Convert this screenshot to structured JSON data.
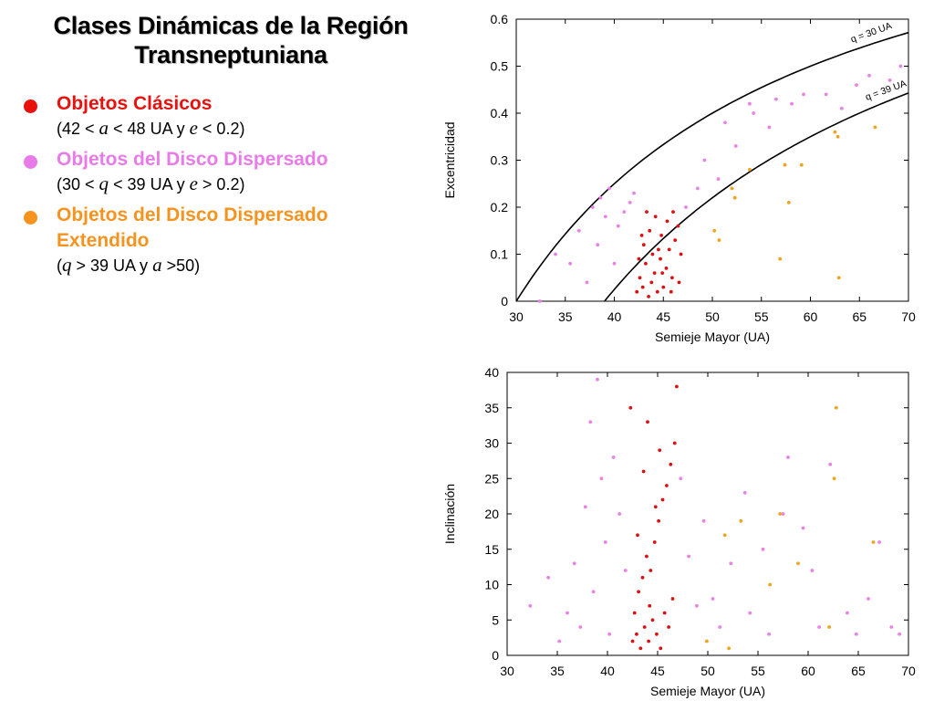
{
  "title_line1": "Clases Dinámicas de la Región",
  "title_line2": "Transneptuniana",
  "legend": [
    {
      "label": "Objetos Clásicos",
      "color": "#e8110e",
      "cond": [
        "(42 < ",
        "a",
        " < 48 UA y ",
        "e",
        " < 0.2)"
      ]
    },
    {
      "label": "Objetos del Disco Dispersado",
      "color": "#e97be8",
      "cond": [
        "(30 < ",
        "q",
        " < 39 UA y ",
        "e",
        " > 0.2)"
      ]
    },
    {
      "label_lines": [
        "Objetos del Disco Dispersado",
        "Extendido"
      ],
      "color": "#f6931f",
      "cond": [
        "(",
        "q",
        " > 39 UA y ",
        "a",
        " >50)"
      ]
    }
  ],
  "colors": {
    "classical": "#dd1010",
    "scattered": "#ea82e6",
    "extended": "#f3a21e"
  },
  "chart_data": [
    {
      "type": "scatter",
      "xlabel": "Semieje Mayor (UA)",
      "ylabel": "Excentricidad",
      "xlim": [
        30,
        70
      ],
      "ylim": [
        0,
        0.6
      ],
      "xticks": [
        30,
        35,
        40,
        45,
        50,
        55,
        60,
        65,
        70
      ],
      "yticks": [
        "0",
        "0.1",
        "0.2",
        "0.3",
        "0.4",
        "0.5",
        "0.6"
      ],
      "curves": [
        {
          "label": "q = 30 UA",
          "q": 30
        },
        {
          "label": "q = 39 UA",
          "q": 39
        }
      ],
      "series": [
        {
          "class": "classical",
          "points": [
            [
              42.3,
              0.02
            ],
            [
              42.6,
              0.05
            ],
            [
              42.9,
              0.03
            ],
            [
              43.2,
              0.08
            ],
            [
              43.5,
              0.01
            ],
            [
              43.8,
              0.04
            ],
            [
              44.1,
              0.06
            ],
            [
              44.4,
              0.02
            ],
            [
              44.7,
              0.09
            ],
            [
              45.0,
              0.03
            ],
            [
              45.3,
              0.07
            ],
            [
              45.6,
              0.11
            ],
            [
              45.9,
              0.05
            ],
            [
              46.2,
              0.13
            ],
            [
              46.5,
              0.16
            ],
            [
              46.8,
              0.1
            ],
            [
              43.0,
              0.12
            ],
            [
              43.6,
              0.15
            ],
            [
              44.2,
              0.18
            ],
            [
              44.8,
              0.14
            ],
            [
              45.4,
              0.17
            ],
            [
              46.0,
              0.19
            ],
            [
              42.5,
              0.09
            ],
            [
              43.3,
              0.19
            ],
            [
              44.5,
              0.11
            ],
            [
              45.8,
              0.02
            ],
            [
              46.6,
              0.04
            ],
            [
              42.8,
              0.14
            ],
            [
              43.9,
              0.1
            ],
            [
              44.9,
              0.06
            ]
          ]
        },
        {
          "class": "scattered",
          "points": [
            [
              32.4,
              0.0
            ],
            [
              34.0,
              0.1
            ],
            [
              35.5,
              0.08
            ],
            [
              36.4,
              0.15
            ],
            [
              37.2,
              0.04
            ],
            [
              37.8,
              0.2
            ],
            [
              38.3,
              0.12
            ],
            [
              38.6,
              0.22
            ],
            [
              39.1,
              0.18
            ],
            [
              39.5,
              0.24
            ],
            [
              40.0,
              0.08
            ],
            [
              40.4,
              0.16
            ],
            [
              41.0,
              0.19
            ],
            [
              41.6,
              0.21
            ],
            [
              42.0,
              0.23
            ],
            [
              47.3,
              0.2
            ],
            [
              48.5,
              0.24
            ],
            [
              49.2,
              0.3
            ],
            [
              50.6,
              0.26
            ],
            [
              51.3,
              0.38
            ],
            [
              52.4,
              0.33
            ],
            [
              53.8,
              0.42
            ],
            [
              54.2,
              0.4
            ],
            [
              55.8,
              0.37
            ],
            [
              56.5,
              0.43
            ],
            [
              58.1,
              0.42
            ],
            [
              59.3,
              0.44
            ],
            [
              61.6,
              0.44
            ],
            [
              63.2,
              0.41
            ],
            [
              64.7,
              0.46
            ],
            [
              66.0,
              0.48
            ],
            [
              68.1,
              0.47
            ],
            [
              69.2,
              0.5
            ]
          ]
        },
        {
          "class": "extended",
          "points": [
            [
              50.2,
              0.15
            ],
            [
              50.7,
              0.13
            ],
            [
              52.0,
              0.24
            ],
            [
              52.3,
              0.22
            ],
            [
              53.8,
              0.28
            ],
            [
              56.9,
              0.09
            ],
            [
              57.4,
              0.29
            ],
            [
              57.8,
              0.21
            ],
            [
              59.1,
              0.29
            ],
            [
              62.5,
              0.36
            ],
            [
              62.8,
              0.35
            ],
            [
              62.9,
              0.05
            ],
            [
              66.6,
              0.37
            ]
          ]
        }
      ]
    },
    {
      "type": "scatter",
      "xlabel": "Semieje Mayor (UA)",
      "ylabel": "Inclinación",
      "xlim": [
        30,
        70
      ],
      "ylim": [
        0,
        40
      ],
      "xticks": [
        30,
        35,
        40,
        45,
        50,
        55,
        60,
        65,
        70
      ],
      "yticks": [
        0,
        5,
        10,
        15,
        20,
        25,
        30,
        35,
        40
      ],
      "series": [
        {
          "class": "classical",
          "points": [
            [
              42.5,
              2
            ],
            [
              42.9,
              3
            ],
            [
              43.3,
              1
            ],
            [
              43.7,
              4
            ],
            [
              44.1,
              2
            ],
            [
              44.5,
              5
            ],
            [
              44.9,
              3
            ],
            [
              45.3,
              1
            ],
            [
              45.7,
              6
            ],
            [
              46.1,
              4
            ],
            [
              46.5,
              8
            ],
            [
              42.7,
              6
            ],
            [
              43.1,
              9
            ],
            [
              43.5,
              11
            ],
            [
              43.9,
              14
            ],
            [
              44.3,
              12
            ],
            [
              44.7,
              16
            ],
            [
              45.1,
              19
            ],
            [
              45.5,
              22
            ],
            [
              45.9,
              24
            ],
            [
              46.3,
              27
            ],
            [
              46.7,
              30
            ],
            [
              42.3,
              35
            ],
            [
              43.6,
              26
            ],
            [
              44.0,
              33
            ],
            [
              44.8,
              21
            ],
            [
              45.2,
              29
            ],
            [
              46.9,
              38
            ],
            [
              43.0,
              17
            ],
            [
              44.2,
              7
            ]
          ]
        },
        {
          "class": "scattered",
          "points": [
            [
              32.3,
              7
            ],
            [
              34.1,
              11
            ],
            [
              35.2,
              2
            ],
            [
              36.0,
              6
            ],
            [
              36.7,
              13
            ],
            [
              37.3,
              4
            ],
            [
              37.8,
              21
            ],
            [
              38.3,
              33
            ],
            [
              38.6,
              9
            ],
            [
              39.0,
              39
            ],
            [
              39.4,
              25
            ],
            [
              39.8,
              16
            ],
            [
              40.2,
              3
            ],
            [
              40.6,
              28
            ],
            [
              41.2,
              20
            ],
            [
              41.8,
              12
            ],
            [
              47.3,
              25
            ],
            [
              48.1,
              14
            ],
            [
              48.9,
              7
            ],
            [
              49.6,
              19
            ],
            [
              50.5,
              8
            ],
            [
              51.2,
              4
            ],
            [
              52.3,
              13
            ],
            [
              53.7,
              23
            ],
            [
              54.2,
              6
            ],
            [
              55.5,
              15
            ],
            [
              56.1,
              3
            ],
            [
              57.5,
              20
            ],
            [
              58.0,
              28
            ],
            [
              59.5,
              18
            ],
            [
              60.4,
              12
            ],
            [
              61.1,
              4
            ],
            [
              62.2,
              27
            ],
            [
              63.9,
              6
            ],
            [
              64.8,
              3
            ],
            [
              66.0,
              8
            ],
            [
              67.1,
              16
            ],
            [
              68.3,
              4
            ],
            [
              69.1,
              3
            ]
          ]
        },
        {
          "class": "extended",
          "points": [
            [
              49.9,
              2
            ],
            [
              51.7,
              17
            ],
            [
              52.1,
              1
            ],
            [
              53.3,
              19
            ],
            [
              56.2,
              10
            ],
            [
              57.2,
              20
            ],
            [
              59.0,
              13
            ],
            [
              62.1,
              4
            ],
            [
              62.6,
              25
            ],
            [
              62.8,
              35
            ],
            [
              66.5,
              16
            ]
          ]
        }
      ]
    }
  ]
}
